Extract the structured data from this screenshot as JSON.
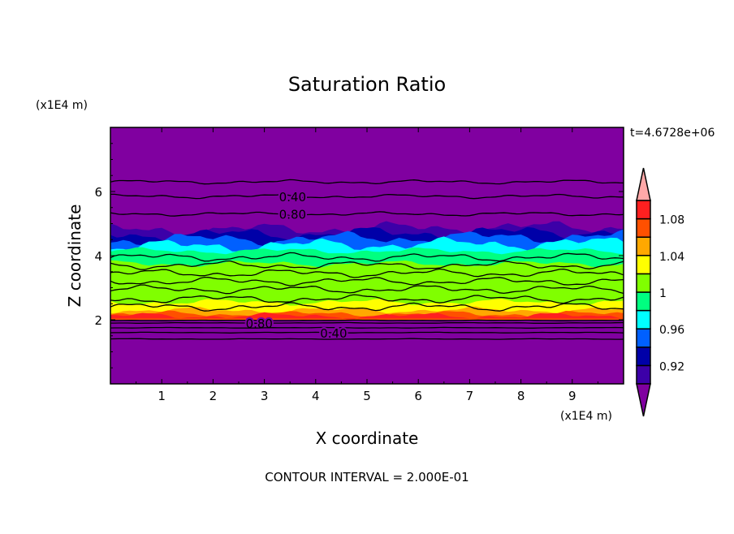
{
  "chart_data": {
    "type": "heatmap",
    "subtype": "filled-contour",
    "title": "Saturation Ratio",
    "xlabel": "X coordinate",
    "ylabel": "Z coordinate",
    "x_unit": "(x1E4 m)",
    "y_unit": "(x1E4 m)",
    "xlim": [
      0,
      10
    ],
    "ylim": [
      0,
      8
    ],
    "xticks": [
      "1",
      "2",
      "3",
      "4",
      "5",
      "6",
      "7",
      "8",
      "9"
    ],
    "yticks": [
      "2",
      "4",
      "6"
    ],
    "time_label": "t=4.6728e+06",
    "footer": "CONTOUR INTERVAL = 2.000E-01",
    "colorbar": {
      "levels": [
        0.9,
        0.92,
        0.94,
        0.96,
        0.98,
        1.0,
        1.02,
        1.04,
        1.06,
        1.08,
        1.1
      ],
      "labels": [
        "0.92",
        "0.96",
        "1",
        "1.04",
        "1.08"
      ],
      "label_values": [
        0.92,
        0.96,
        1.0,
        1.04,
        1.08
      ],
      "under_color": "#8000a0",
      "over_color": "#ffa8a8",
      "colors": [
        "#3c00a8",
        "#0000a8",
        "#0060ff",
        "#00ffff",
        "#00ff80",
        "#80ff00",
        "#ffff00",
        "#ffa800",
        "#ff5000",
        "#ff2020"
      ]
    },
    "bands": [
      {
        "z0": 0,
        "z1": 8,
        "color_index": -1
      },
      {
        "z0": 4.45,
        "z1": 4.85,
        "color_index": 0
      },
      {
        "z0": 4.35,
        "z1": 4.7,
        "color_index": 1
      },
      {
        "z0": 4.1,
        "z1": 4.55,
        "color_index": 2
      },
      {
        "z0": 3.9,
        "z1": 4.35,
        "color_index": 3
      },
      {
        "z0": 2.0,
        "z1": 4.15,
        "color_index": 4
      },
      {
        "z0": 2.0,
        "z1": 3.75,
        "color_index": 5
      },
      {
        "z0": 2.0,
        "z1": 2.55,
        "color_index": 6
      },
      {
        "z0": 2.0,
        "z1": 2.3,
        "color_index": 7
      },
      {
        "z0": 2.0,
        "z1": 2.18,
        "color_index": 8
      },
      {
        "z0": 2.04,
        "z1": 2.12,
        "color_index": 9
      }
    ],
    "contour_lines": [
      {
        "z": 6.3
      },
      {
        "z": 5.85,
        "label": "0.40"
      },
      {
        "z": 5.3,
        "label": "0.80"
      },
      {
        "z": 1.98
      },
      {
        "z": 1.9,
        "label": "0.80"
      },
      {
        "z": 1.75
      },
      {
        "z": 1.6,
        "label": "0.40"
      },
      {
        "z": 1.4
      }
    ],
    "inner_contours_z": [
      2.4,
      2.65,
      2.95,
      3.2,
      3.45,
      3.7,
      3.95
    ]
  }
}
